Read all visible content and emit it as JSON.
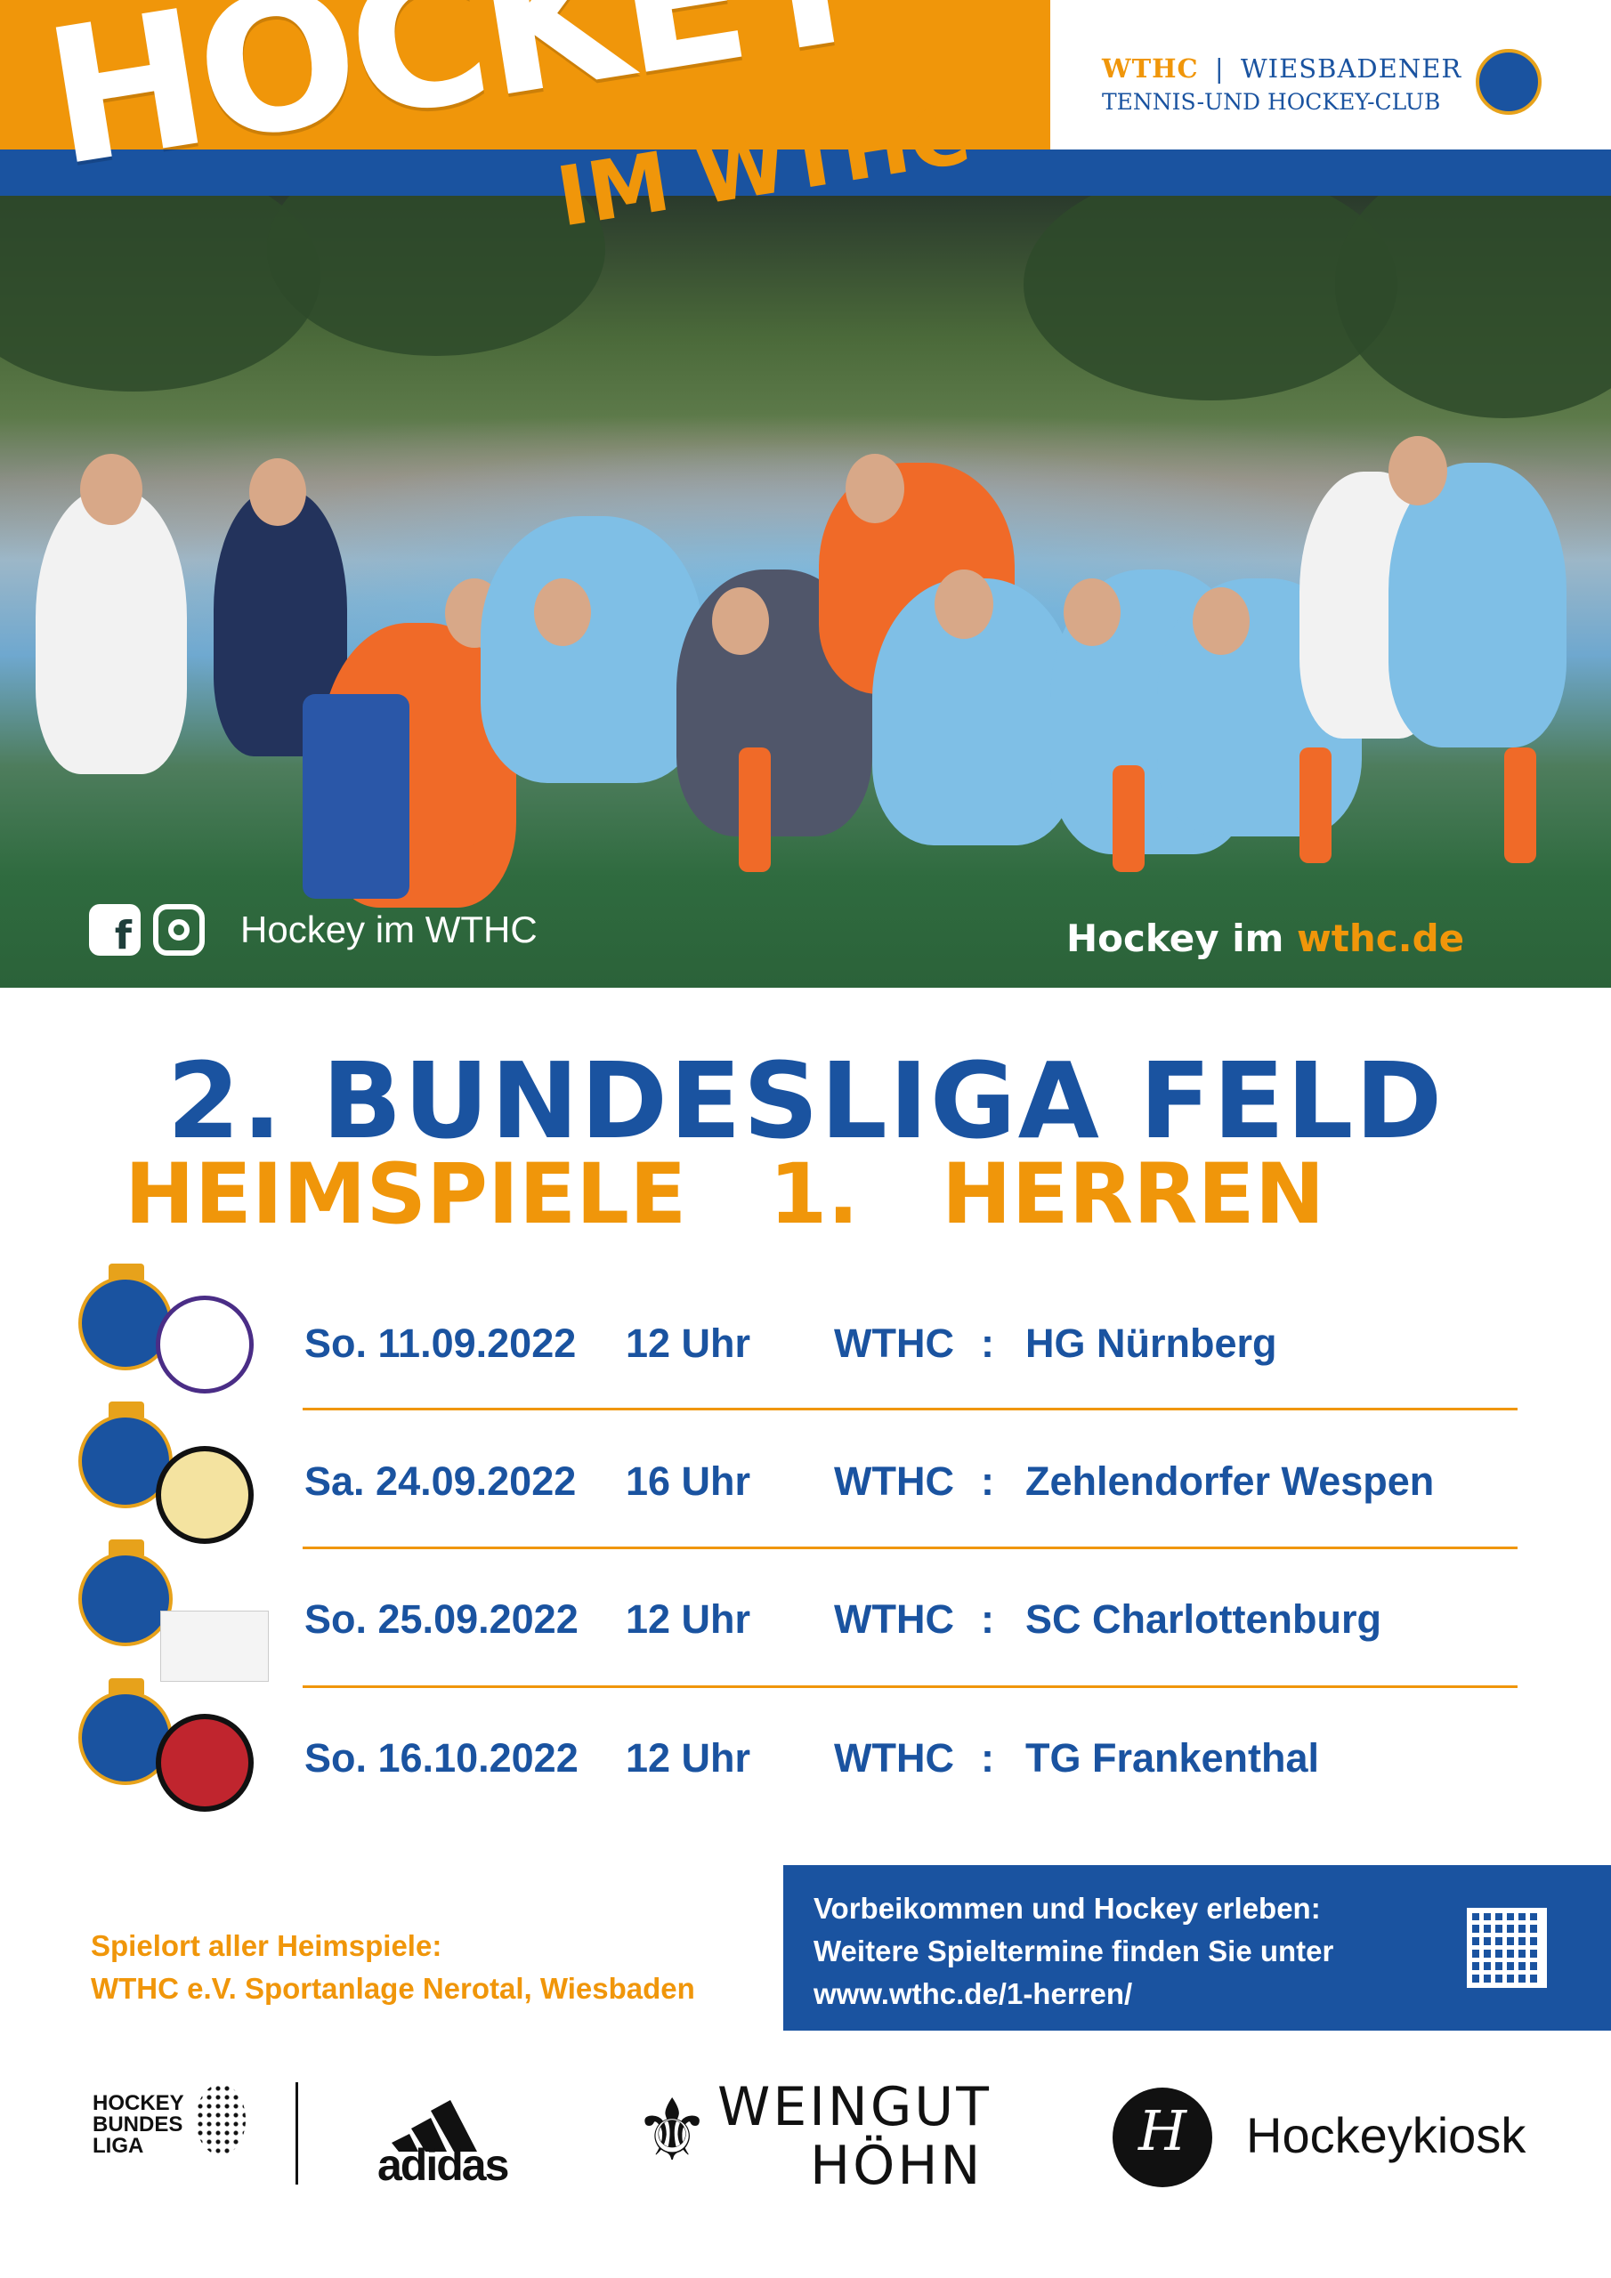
{
  "header": {
    "title": "HOCKEY",
    "subtitle": "IM WTHC",
    "club_short": "WTHC",
    "club_separator": "|",
    "club_name_line1": "WIESBADENER",
    "club_name_line2": "TENNIS-UND HOCKEY-CLUB"
  },
  "photo": {
    "social_label": "Hockey im WTHC",
    "site_prefix": "Hockey im ",
    "site_domain": "wthc.de"
  },
  "heading": {
    "line1": "2. BUNDESLIGA FELD",
    "line2": "HEIMSPIELE 1. HERREN"
  },
  "matches": [
    {
      "date": "So. 11.09.2022",
      "time": "12 Uhr",
      "home": "WTHC",
      "sep": ":",
      "away": "HG Nürnberg",
      "away_logo": "hg-nuernberg-logo"
    },
    {
      "date": "Sa. 24.09.2022",
      "time": "16 Uhr",
      "home": "WTHC",
      "sep": ":",
      "away": "Zehlendorfer Wespen",
      "away_logo": "zehlendorfer-wespen-logo"
    },
    {
      "date": "So. 25.09.2022",
      "time": "12 Uhr",
      "home": "WTHC",
      "sep": ":",
      "away": "SC Charlottenburg",
      "away_logo": "sc-charlottenburg-logo"
    },
    {
      "date": "So. 16.10.2022",
      "time": "12 Uhr",
      "home": "WTHC",
      "sep": ":",
      "away": "TG Frankenthal",
      "away_logo": "tg-frankenthal-logo"
    }
  ],
  "venue": {
    "label": "Spielort aller Heimspiele:",
    "value": "WTHC e.V. Sportanlage Nerotal, Wiesbaden"
  },
  "info": {
    "line1": "Vorbeikommen und Hockey erleben:",
    "line2": "Weitere Spieltermine finden Sie unter",
    "line3": "www.wthc.de/1-herren/"
  },
  "sponsors": {
    "bundesliga": [
      "HOCKEY",
      "BUNDES",
      "LIGA"
    ],
    "adidas": "adidas",
    "weingut_line1": "WEINGUT",
    "weingut_line2": "HÖHN",
    "kiosk": "Hockeykiosk"
  },
  "colors": {
    "brand_blue": "#1a53a0",
    "brand_orange": "#f0960a",
    "gold": "#e7a21b"
  }
}
